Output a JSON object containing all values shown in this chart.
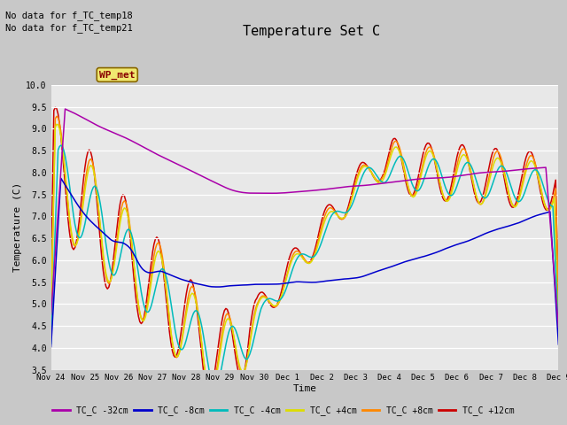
{
  "title": "Temperature Set C",
  "xlabel": "Time",
  "ylabel": "Temperature (C)",
  "ylim": [
    3.5,
    10.0
  ],
  "fig_bg": "#d0d0d0",
  "plot_bg": "#e8e8e8",
  "annotation_text1": "No data for f_TC_temp18",
  "annotation_text2": "No data for f_TC_temp21",
  "wp_met_label": "WP_met",
  "series_colors": {
    "TC_C -32cm": "#aa00aa",
    "TC_C -8cm": "#0000cc",
    "TC_C -4cm": "#00bbbb",
    "TC_C +4cm": "#dddd00",
    "TC_C +8cm": "#ff8800",
    "TC_C +12cm": "#cc0000"
  },
  "legend_entries": [
    "TC_C -32cm",
    "TC_C -8cm",
    "TC_C -4cm",
    "TC_C +4cm",
    "TC_C +8cm",
    "TC_C +12cm"
  ],
  "xtick_labels": [
    "Nov 24",
    "Nov 25",
    "Nov 26",
    "Nov 27",
    "Nov 28",
    "Nov 29",
    "Nov 30",
    "Dec 1",
    "Dec 2",
    "Dec 3",
    "Dec 4",
    "Dec 5",
    "Dec 6",
    "Dec 7",
    "Dec 8",
    "Dec 9"
  ],
  "font_family": "monospace"
}
